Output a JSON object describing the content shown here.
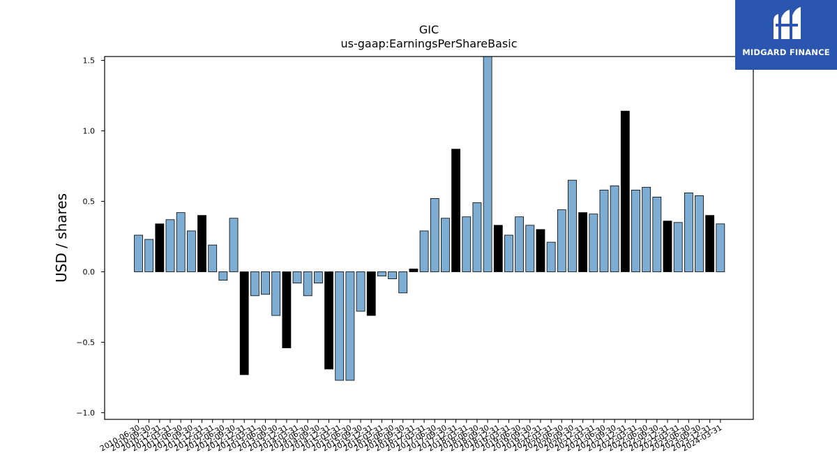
{
  "chart_data": {
    "type": "bar",
    "title": "GIC",
    "subtitle": "us-gaap:EarningsPerShareBasic",
    "xlabel": "",
    "ylabel": "USD / shares",
    "ylim": [
      -1.05,
      1.52
    ],
    "yticks": [
      -1.0,
      -0.5,
      0.0,
      0.5,
      1.0,
      1.5
    ],
    "ytick_labels": [
      "−1.0",
      "−0.5",
      "0.0",
      "0.5",
      "1.0",
      "1.5"
    ],
    "grid": false,
    "colors": {
      "quarter": "#7eadd4",
      "annual": "#000000",
      "edge": "#000000"
    },
    "categories": [
      "2010-06-30",
      "2010-09-30",
      "2010-12-31",
      "2011-03-31",
      "2011-06-30",
      "2011-09-30",
      "2011-12-31",
      "2012-03-31",
      "2012-06-30",
      "2012-09-30",
      "2012-12-31",
      "2013-03-31",
      "2013-06-30",
      "2013-09-30",
      "2013-12-31",
      "2014-03-31",
      "2014-06-30",
      "2014-09-30",
      "2014-12-31",
      "2015-03-31",
      "2015-06-30",
      "2015-09-30",
      "2015-12-31",
      "2016-03-31",
      "2016-06-30",
      "2016-09-30",
      "2016-12-31",
      "2017-03-31",
      "2017-06-30",
      "2017-09-30",
      "2017-12-31",
      "2018-03-31",
      "2018-06-30",
      "2018-09-30",
      "2018-12-31",
      "2019-03-31",
      "2019-06-30",
      "2019-09-30",
      "2019-12-31",
      "2020-03-31",
      "2020-06-30",
      "2020-09-30",
      "2020-12-31",
      "2021-03-31",
      "2021-06-30",
      "2021-09-30",
      "2021-12-31",
      "2022-03-31",
      "2022-06-30",
      "2022-09-30",
      "2022-12-31",
      "2023-03-31",
      "2023-06-30",
      "2023-09-30",
      "2023-12-31",
      "2024-03-31"
    ],
    "values": [
      0.26,
      0.23,
      0.34,
      0.37,
      0.42,
      0.29,
      0.4,
      0.19,
      -0.06,
      0.38,
      -0.73,
      -0.17,
      -0.16,
      -0.31,
      -0.54,
      -0.08,
      -0.17,
      -0.08,
      -0.69,
      -0.77,
      -0.77,
      -0.28,
      -0.31,
      -0.03,
      -0.05,
      -0.15,
      0.02,
      0.29,
      0.52,
      0.38,
      0.87,
      0.39,
      0.49,
      1.53,
      0.33,
      0.26,
      0.39,
      0.33,
      0.3,
      0.21,
      0.44,
      0.65,
      0.42,
      0.41,
      0.58,
      0.61,
      1.14,
      0.58,
      0.6,
      0.53,
      0.36,
      0.35,
      0.56,
      0.54,
      0.4,
      0.34
    ],
    "period_type": [
      "q",
      "q",
      "a",
      "q",
      "q",
      "q",
      "a",
      "q",
      "q",
      "q",
      "a",
      "q",
      "q",
      "q",
      "a",
      "q",
      "q",
      "q",
      "a",
      "q",
      "q",
      "q",
      "a",
      "q",
      "q",
      "q",
      "a",
      "q",
      "q",
      "q",
      "a",
      "q",
      "q",
      "q",
      "a",
      "q",
      "q",
      "q",
      "a",
      "q",
      "q",
      "q",
      "a",
      "q",
      "q",
      "q",
      "a",
      "q",
      "q",
      "q",
      "a",
      "q",
      "q",
      "q",
      "a",
      "q"
    ]
  },
  "logo": {
    "text": "MIDGARD FINANCE"
  }
}
